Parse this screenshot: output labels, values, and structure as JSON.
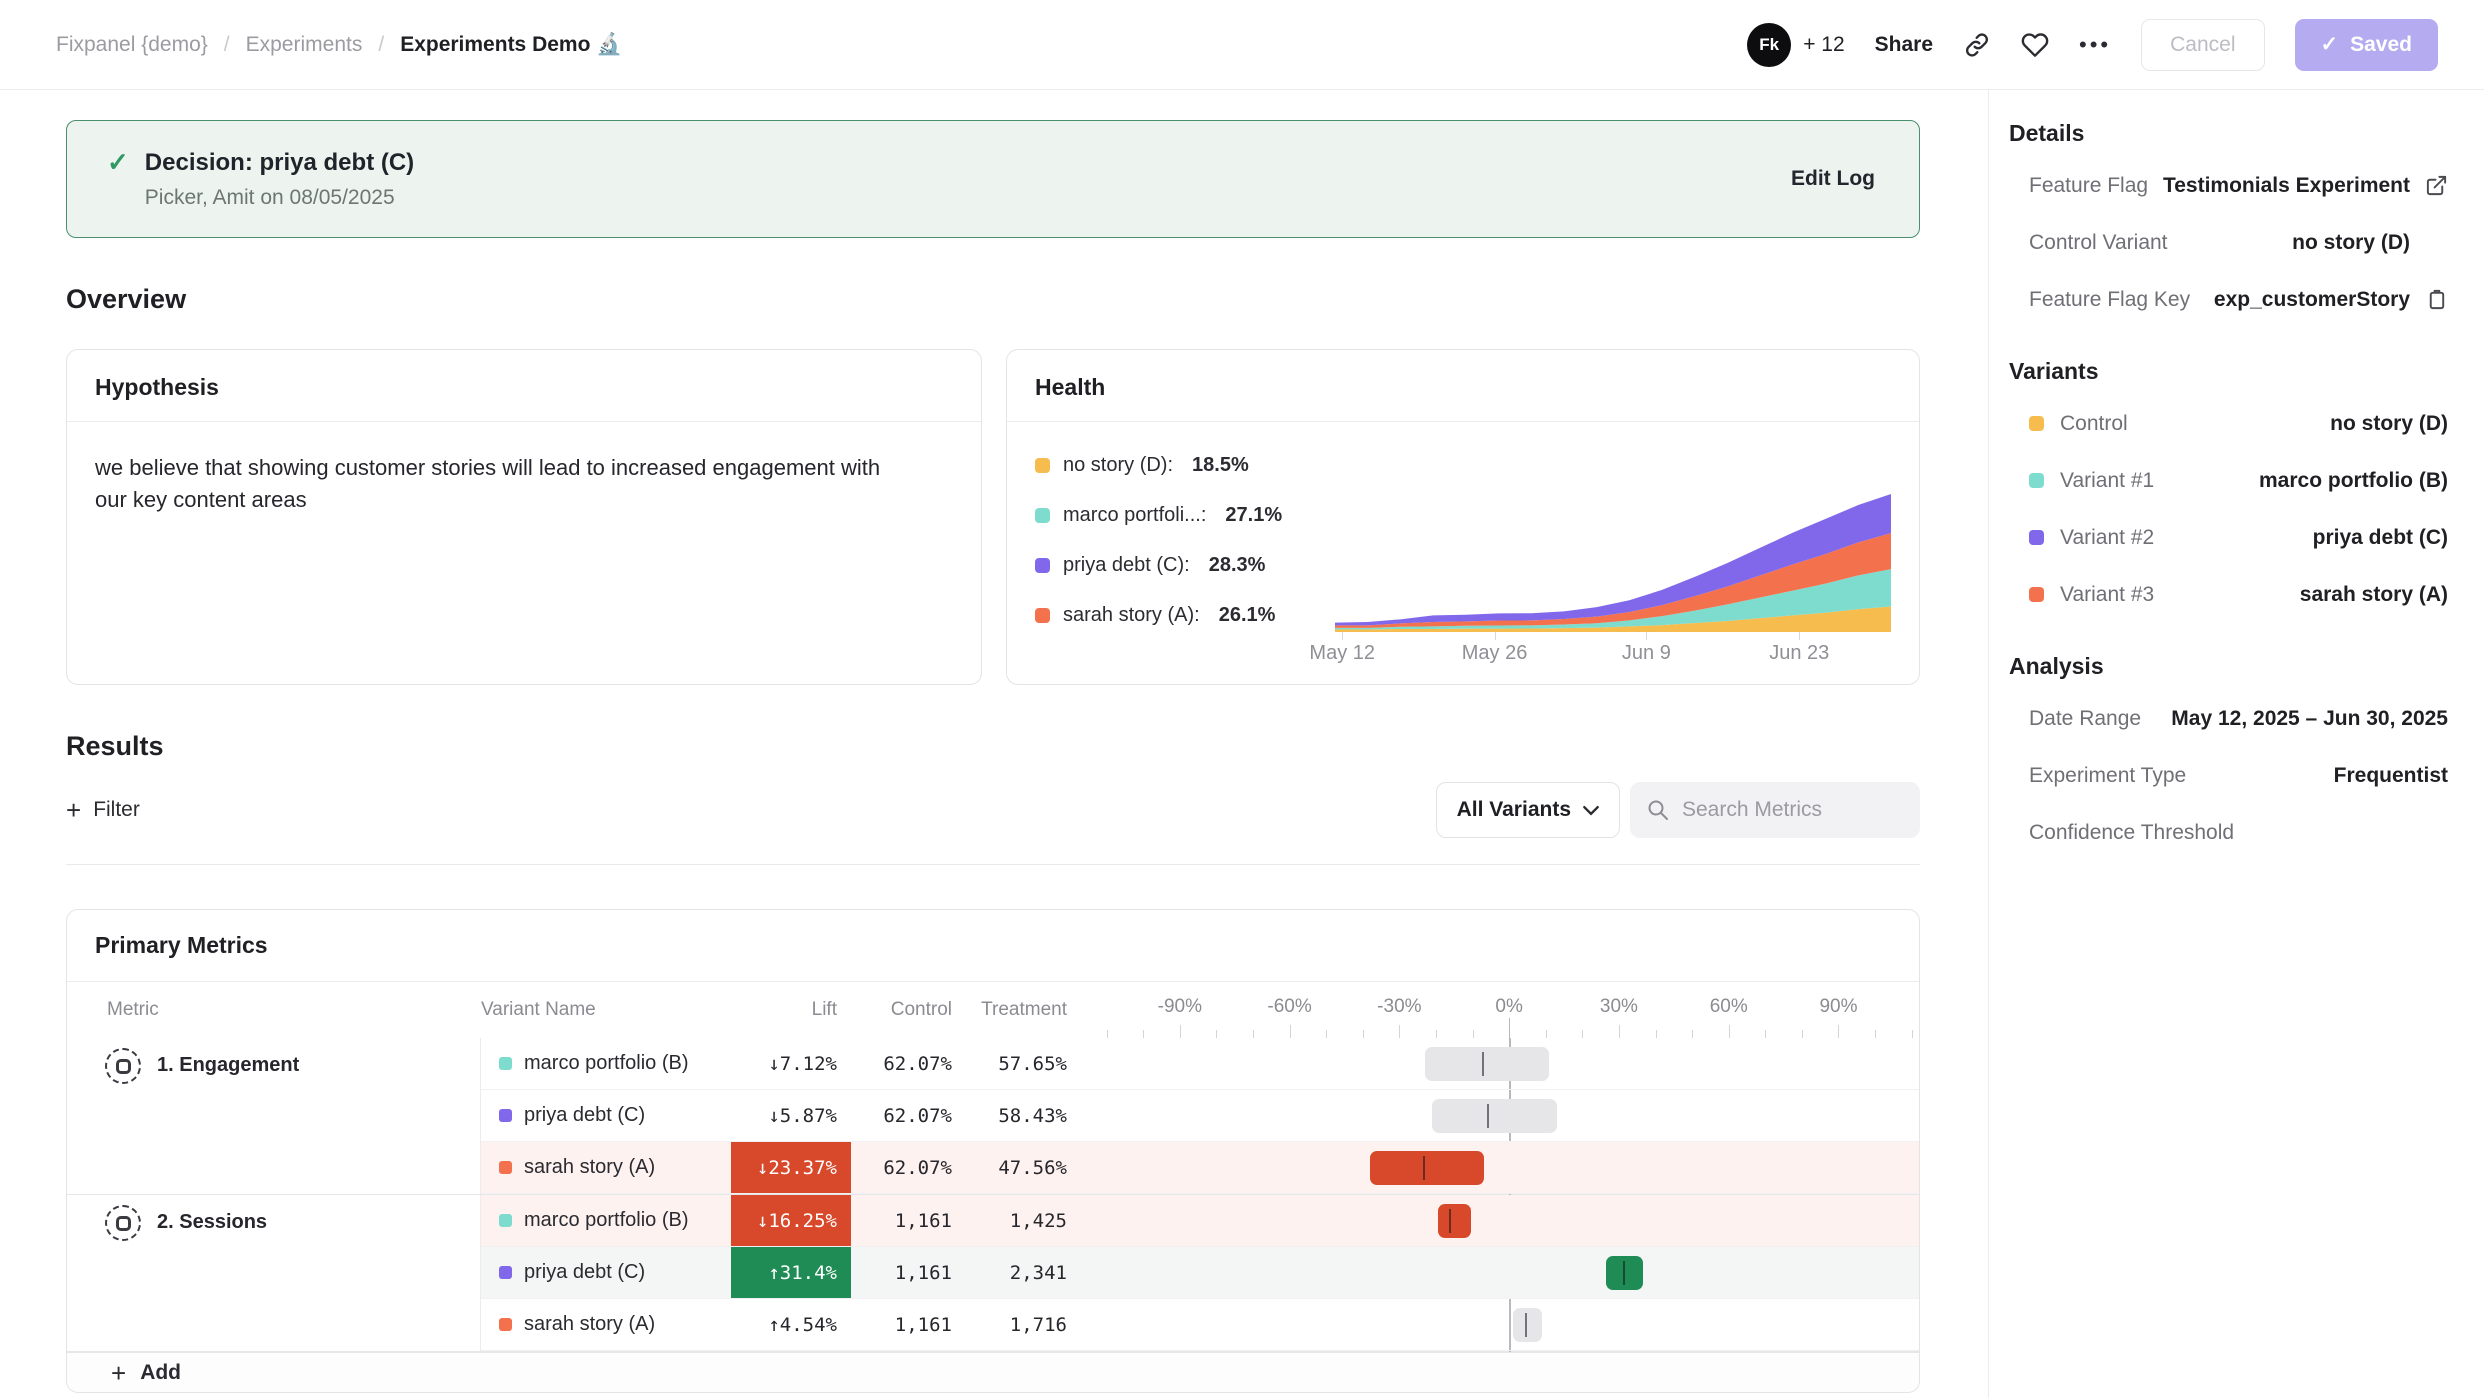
{
  "breadcrumb": {
    "root": "Fixpanel {demo}",
    "sep": "/",
    "section": "Experiments",
    "page": "Experiments Demo 🔬"
  },
  "topbar": {
    "avatar_initials": "Fk",
    "collab_count": "+ 12",
    "share_label": "Share",
    "more_label": "•••",
    "cancel_label": "Cancel",
    "saved_label": "Saved",
    "saved_check": "✓"
  },
  "banner": {
    "check": "✓",
    "title": "Decision: priya debt (C)",
    "subtitle": "Picker, Amit on 08/05/2025",
    "action": "Edit Log"
  },
  "overview_title": "Overview",
  "hypothesis": {
    "title": "Hypothesis",
    "text": "we believe that showing customer stories will lead to increased engagement with our key content areas"
  },
  "health": {
    "title": "Health",
    "legend": [
      {
        "name_label": "no story (D):",
        "pct": "18.5%",
        "color": "#F6BC4E"
      },
      {
        "name_label": "marco portfoli...:",
        "pct": "27.1%",
        "color": "#7EDCCE"
      },
      {
        "name_label": "priya debt (C):",
        "pct": "28.3%",
        "color": "#8168EA"
      },
      {
        "name_label": "sarah story (A):",
        "pct": "26.1%",
        "color": "#F4714E"
      }
    ]
  },
  "chart_data": {
    "type": "area",
    "title": "Health — variant exposure over time (stacked)",
    "x_range": "May 12 – Jun 30, 2025",
    "x_labels": [
      {
        "label": "May 12",
        "f": 0.013
      },
      {
        "label": "May 26",
        "f": 0.287
      },
      {
        "label": "Jun 9",
        "f": 0.56
      },
      {
        "label": "Jun 23",
        "f": 0.835
      }
    ],
    "stack_order": "bottom to top",
    "series": [
      {
        "name": "no story (D)",
        "color": "#F6BC4E",
        "values": [
          1.8,
          1.8,
          2.2,
          2.2,
          2.5,
          2.5,
          2.6,
          2.8,
          3.2,
          4,
          5,
          6.5,
          8,
          10,
          12,
          14,
          16.5,
          18.5
        ]
      },
      {
        "name": "marco portfolio (B)",
        "color": "#7EDCCE",
        "values": [
          1.2,
          1.2,
          1.6,
          1.8,
          2,
          2.2,
          2.2,
          2.6,
          3.2,
          4.5,
          6.5,
          9,
          12,
          15,
          18,
          21,
          24.5,
          27.1
        ]
      },
      {
        "name": "sarah story (A)",
        "color": "#F4714E",
        "values": [
          1.8,
          1.8,
          2.4,
          3.2,
          3.2,
          3.6,
          3.6,
          4,
          4.8,
          6,
          8,
          10.5,
          13,
          16,
          19,
          21.5,
          24,
          26.1
        ]
      },
      {
        "name": "priya debt (C)",
        "color": "#8168EA",
        "values": [
          2,
          2.4,
          3,
          4.8,
          4.8,
          5.2,
          5.2,
          5.6,
          6.8,
          8.5,
          11,
          14,
          17,
          20,
          23,
          25.5,
          27,
          28.3
        ]
      }
    ]
  },
  "results": {
    "title": "Results",
    "plus": "+",
    "filter_label": "Filter",
    "variants_dropdown": "All Variants",
    "search_placeholder": "Search Metrics"
  },
  "metrics": {
    "title": "Primary Metrics",
    "columns": {
      "metric": "Metric",
      "variant": "Variant Name",
      "lift": "Lift",
      "control": "Control",
      "treatment": "Treatment"
    },
    "axis": {
      "min": -117,
      "max": 112,
      "minor_step": 10,
      "labels": [
        "-90%",
        "-60%",
        "-30%",
        "0%",
        "30%",
        "60%",
        "90%"
      ],
      "label_values": [
        -90,
        -60,
        -30,
        0,
        30,
        60,
        90
      ]
    },
    "groups": [
      {
        "name": "1. Engagement",
        "rows": [
          {
            "variant": "marco portfolio (B)",
            "swatch": "#7EDCCE",
            "lift": "↓7.12%",
            "control": "62.07%",
            "treatment": "57.65%",
            "ci": [
              -23,
              11
            ],
            "center": -7.12,
            "style": "neutral"
          },
          {
            "variant": "priya debt (C)",
            "swatch": "#8168EA",
            "lift": "↓5.87%",
            "control": "62.07%",
            "treatment": "58.43%",
            "ci": [
              -21,
              13
            ],
            "center": -5.87,
            "style": "neutral"
          },
          {
            "variant": "sarah story (A)",
            "swatch": "#F4714E",
            "lift": "↓23.37%",
            "control": "62.07%",
            "treatment": "47.56%",
            "ci": [
              -38,
              -7
            ],
            "center": -23.37,
            "style": "negative"
          }
        ]
      },
      {
        "name": "2. Sessions",
        "rows": [
          {
            "variant": "marco portfolio (B)",
            "swatch": "#7EDCCE",
            "lift": "↓16.25%",
            "control": "1,161",
            "treatment": "1,425",
            "ci": [
              -19.5,
              -10.5
            ],
            "center": -16.25,
            "style": "negative"
          },
          {
            "variant": "priya debt (C)",
            "swatch": "#8168EA",
            "lift": "↑31.4%",
            "control": "1,161",
            "treatment": "2,341",
            "ci": [
              26.5,
              36.5
            ],
            "center": 31.4,
            "style": "positive"
          },
          {
            "variant": "sarah story (A)",
            "swatch": "#F4714E",
            "lift": "↑4.54%",
            "control": "1,161",
            "treatment": "1,716",
            "ci": [
              1,
              9
            ],
            "center": 4.54,
            "style": "neutral"
          }
        ]
      }
    ],
    "add_label": "Add"
  },
  "sidebar": {
    "details": {
      "title": "Details",
      "rows": [
        {
          "label": "Feature Flag",
          "value": "Testimonials Experiment"
        },
        {
          "label": "Control Variant",
          "value": "no story (D)"
        },
        {
          "label": "Feature Flag Key",
          "value": "exp_customerStory"
        }
      ]
    },
    "variants": {
      "title": "Variants",
      "rows": [
        {
          "label": "Control",
          "value": "no story (D)",
          "swatch": "#F6BC4E"
        },
        {
          "label": "Variant #1",
          "value": "marco portfolio (B)",
          "swatch": "#7EDCCE"
        },
        {
          "label": "Variant #2",
          "value": "priya debt (C)",
          "swatch": "#8168EA"
        },
        {
          "label": "Variant #3",
          "value": "sarah story (A)",
          "swatch": "#F4714E"
        }
      ]
    },
    "analysis": {
      "title": "Analysis",
      "rows": [
        {
          "label": "Date Range",
          "value": "May 12, 2025 – Jun 30, 2025"
        },
        {
          "label": "Experiment Type",
          "value": "Frequentist"
        },
        {
          "label": "Confidence Threshold",
          "value": ""
        }
      ]
    }
  }
}
